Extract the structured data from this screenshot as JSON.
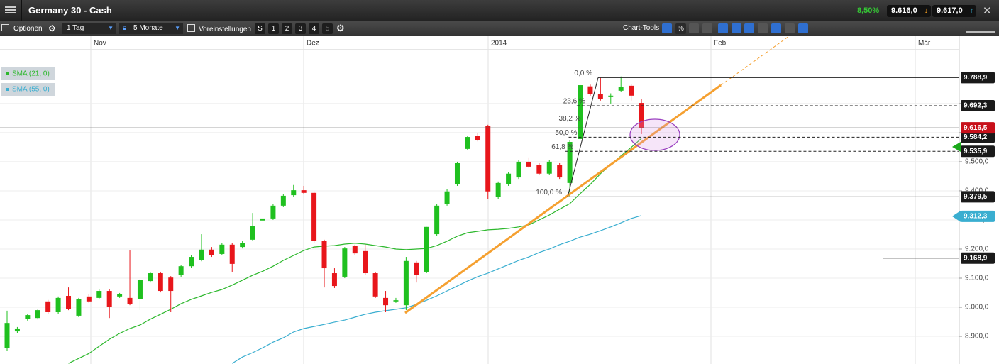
{
  "header": {
    "title": "Germany 30 - Cash",
    "change": "8,50%",
    "bid": "9.616,0",
    "ask": "9.617,0"
  },
  "toolbar": {
    "options": "Optionen",
    "interval": "1 Tag",
    "period": "5 Monate",
    "presets": "Voreinstellungen",
    "buttons": [
      "S",
      "1",
      "2",
      "3",
      "4",
      "5"
    ],
    "chart_tools": "Chart-Tools",
    "percent": "%"
  },
  "chart_data": {
    "type": "candlestick",
    "x_labels": [
      "Nov",
      "Dez",
      "2014",
      "Feb",
      "Mär"
    ],
    "up_color": "#1fc01f",
    "down_color": "#e8161b",
    "ylim": [
      8805,
      9885
    ],
    "yticks": [
      {
        "value": 8900,
        "label": "8.900,0"
      },
      {
        "value": 9000,
        "label": "9.000,0"
      },
      {
        "value": 9100,
        "label": "9.100,0"
      },
      {
        "value": 9200,
        "label": "9.200,0"
      },
      {
        "value": 9300,
        "label": "9.300,0"
      },
      {
        "value": 9400,
        "label": "9.400,0"
      },
      {
        "value": 9500,
        "label": "9.500,0"
      },
      {
        "value": 9600,
        "label": "9.600,0"
      },
      {
        "value": 9700,
        "label": "9.700,0"
      }
    ],
    "grid": true,
    "ohlc": [
      [
        8861,
        8988,
        8849,
        8946
      ],
      [
        8917,
        8932,
        8912,
        8927
      ],
      [
        8959,
        8978,
        8954,
        8973
      ],
      [
        8963,
        8995,
        8958,
        8990
      ],
      [
        9020,
        9025,
        8978,
        8983
      ],
      [
        8983,
        9037,
        8978,
        9032
      ],
      [
        9039,
        9068,
        8990,
        8993
      ],
      [
        8971,
        9032,
        8966,
        9027
      ],
      [
        9037,
        9044,
        9015,
        9020
      ],
      [
        9032,
        9061,
        9027,
        9056
      ],
      [
        9056,
        9061,
        8963,
        9002
      ],
      [
        9037,
        9049,
        9032,
        9044
      ],
      [
        9032,
        9195,
        9007,
        9012
      ],
      [
        9027,
        9098,
        8990,
        9093
      ],
      [
        9090,
        9122,
        9085,
        9117
      ],
      [
        9117,
        9122,
        9051,
        9056
      ],
      [
        9102,
        9107,
        8983,
        9056
      ],
      [
        9110,
        9146,
        9105,
        9141
      ],
      [
        9141,
        9178,
        9136,
        9173
      ],
      [
        9163,
        9251,
        9158,
        9198
      ],
      [
        9198,
        9207,
        9173,
        9178
      ],
      [
        9183,
        9220,
        9178,
        9215
      ],
      [
        9215,
        9220,
        9122,
        9149
      ],
      [
        9207,
        9227,
        9202,
        9220
      ],
      [
        9232,
        9324,
        9227,
        9280
      ],
      [
        9298,
        9310,
        9293,
        9305
      ],
      [
        9305,
        9354,
        9300,
        9349
      ],
      [
        9349,
        9388,
        9344,
        9383
      ],
      [
        9385,
        9420,
        9380,
        9402
      ],
      [
        9402,
        9417,
        9388,
        9393
      ],
      [
        9393,
        9398,
        9222,
        9227
      ],
      [
        9227,
        9232,
        9068,
        9134
      ],
      [
        9117,
        9134,
        9066,
        9073
      ],
      [
        9105,
        9207,
        9100,
        9202
      ],
      [
        9210,
        9215,
        9180,
        9185
      ],
      [
        9193,
        9215,
        9112,
        9117
      ],
      [
        9117,
        9122,
        9032,
        9037
      ],
      [
        9032,
        9056,
        8983,
        9007
      ],
      [
        9020,
        9032,
        9015,
        9024
      ],
      [
        9007,
        9173,
        8990,
        9159
      ],
      [
        9154,
        9159,
        9085,
        9112
      ],
      [
        9122,
        9276,
        9117,
        9276
      ],
      [
        9251,
        9354,
        9246,
        9349
      ],
      [
        9356,
        9405,
        9349,
        9398
      ],
      [
        9422,
        9500,
        9417,
        9495
      ],
      [
        9544,
        9590,
        9539,
        9585
      ],
      [
        9588,
        9598,
        9570,
        9573
      ],
      [
        9622,
        9627,
        9373,
        9398
      ],
      [
        9378,
        9432,
        9373,
        9427
      ],
      [
        9422,
        9464,
        9417,
        9459
      ],
      [
        9446,
        9505,
        9441,
        9500
      ],
      [
        9500,
        9515,
        9478,
        9483
      ],
      [
        9488,
        9495,
        9454,
        9459
      ],
      [
        9459,
        9505,
        9454,
        9500
      ],
      [
        9490,
        9495,
        9441,
        9446
      ],
      [
        9427,
        9573,
        9380,
        9568
      ],
      [
        9578,
        9768,
        9573,
        9763
      ],
      [
        9759,
        9765,
        9727,
        9732
      ],
      [
        9732,
        9788,
        9710,
        9715
      ],
      [
        9722,
        9735,
        9700,
        9727
      ],
      [
        9744,
        9793,
        9739,
        9756
      ],
      [
        9761,
        9766,
        9710,
        9727
      ],
      [
        9702,
        9715,
        9595,
        9616.5
      ]
    ],
    "series": [
      {
        "name": "SMA (21, 0)",
        "color": "#2db82d",
        "values": [
          null,
          null,
          null,
          null,
          null,
          null,
          8807,
          8824,
          8841,
          8866,
          8890,
          8910,
          8927,
          8939,
          8959,
          8976,
          8993,
          9012,
          9027,
          9039,
          9051,
          9061,
          9076,
          9093,
          9110,
          9124,
          9141,
          9161,
          9178,
          9195,
          9207,
          9210,
          9212,
          9217,
          9220,
          9217,
          9212,
          9207,
          9200,
          9198,
          9200,
          9202,
          9212,
          9227,
          9244,
          9256,
          9261,
          9266,
          9268,
          9271,
          9276,
          9283,
          9300,
          9317,
          9337,
          9356,
          9390,
          9422,
          9459,
          9490,
          9520,
          9549,
          9580
        ]
      },
      {
        "name": "SMA (55, 0)",
        "color": "#3aaed0",
        "values": [
          null,
          null,
          null,
          null,
          null,
          null,
          null,
          null,
          null,
          null,
          null,
          null,
          null,
          null,
          null,
          null,
          null,
          null,
          null,
          null,
          null,
          null,
          8807,
          8829,
          8844,
          8861,
          8880,
          8895,
          8915,
          8927,
          8934,
          8941,
          8949,
          8956,
          8966,
          8976,
          8983,
          8988,
          8993,
          8998,
          9010,
          9024,
          9039,
          9056,
          9073,
          9090,
          9105,
          9117,
          9132,
          9146,
          9161,
          9173,
          9188,
          9200,
          9215,
          9227,
          9241,
          9251,
          9263,
          9276,
          9290,
          9305,
          9315
        ]
      }
    ],
    "fibonacci": [
      {
        "label": "0,0 %",
        "value": 9788.9,
        "price": "9.788,9"
      },
      {
        "label": "23,6 %",
        "value": 9692.3,
        "price": "9.692,3"
      },
      {
        "label": "38,2 %",
        "value": 9632.6
      },
      {
        "label": "50,0 %",
        "value": 9584.2,
        "price": "9.584,2"
      },
      {
        "label": "61,8 %",
        "value": 9535.9,
        "price": "9.535,9"
      },
      {
        "label": "100,0 %",
        "value": 9379.5,
        "price": "9.379,5"
      }
    ],
    "price_tags": [
      {
        "value": 9168.9,
        "label": "9.168,9",
        "color": "#1a1a1a"
      },
      {
        "value": 9312.3,
        "label": "9.312,3",
        "color": "#3aaed0"
      },
      {
        "value": 9551,
        "color": "#1aa81a"
      },
      {
        "value": 9616.5,
        "label": "9.616,5",
        "color": "#c8101a"
      }
    ]
  }
}
